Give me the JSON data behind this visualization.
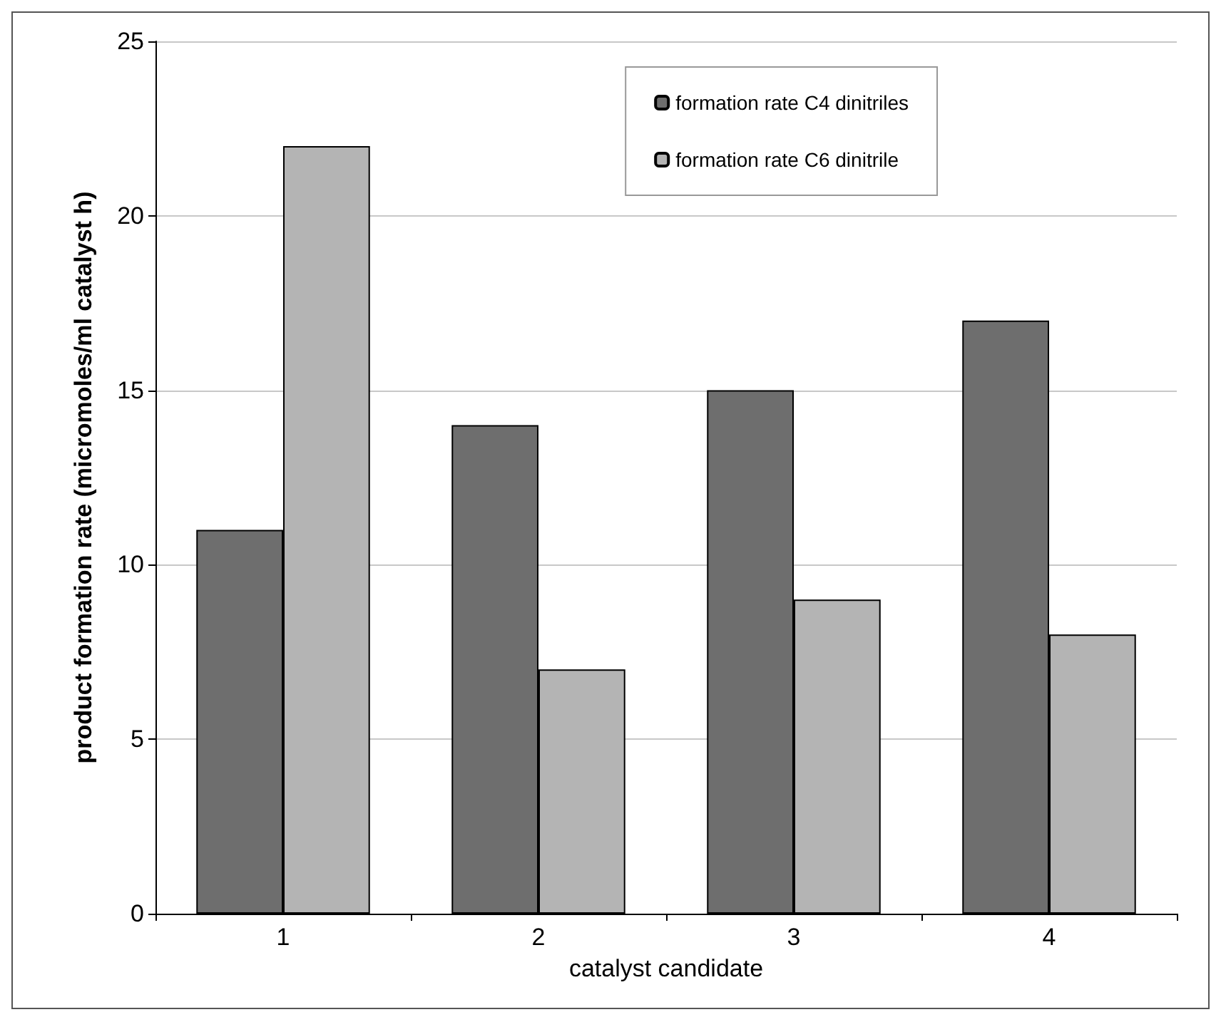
{
  "chart_data": {
    "type": "bar",
    "xlabel": "catalyst candidate",
    "ylabel": "product formation rate (micromoles/ml catalyst h)",
    "categories": [
      "1",
      "2",
      "3",
      "4"
    ],
    "series": [
      {
        "name": "formation rate C4 dinitriles",
        "color": "#6e6e6e",
        "values": [
          11,
          14,
          15,
          17
        ]
      },
      {
        "name": "formation rate C6 dinitrile",
        "color": "#b4b4b4",
        "values": [
          22,
          7,
          9,
          8
        ]
      }
    ],
    "ylim": [
      0,
      25
    ],
    "yticks": [
      0,
      5,
      10,
      15,
      20,
      25
    ],
    "grid": "y",
    "legend": "top right"
  }
}
